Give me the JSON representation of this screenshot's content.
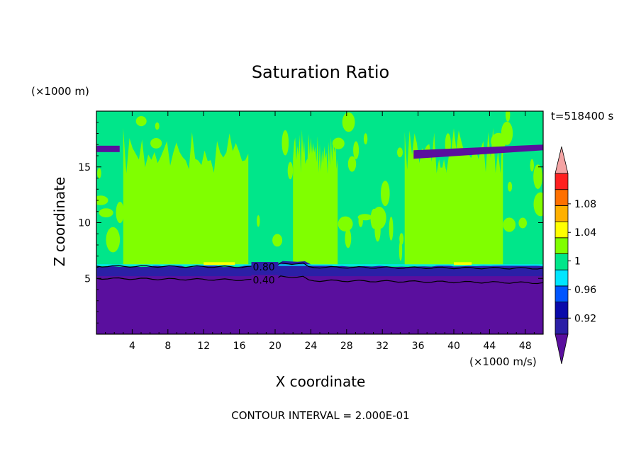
{
  "chart_data": {
    "type": "heatmap",
    "title": "Saturation Ratio",
    "xlabel": "X coordinate",
    "ylabel": "Z coordinate",
    "x_unit": "(×1000 m/s)",
    "y_unit": "(×1000 m)",
    "time_label": "t=518400 s",
    "footer": "CONTOUR INTERVAL = 2.000E-01",
    "xlim": [
      0,
      50
    ],
    "ylim": [
      0,
      20
    ],
    "x_ticks": [
      4,
      8,
      12,
      16,
      20,
      24,
      28,
      32,
      36,
      40,
      44,
      48
    ],
    "y_ticks": [
      5,
      10,
      15
    ],
    "colorbar": {
      "levels": [
        0.92,
        0.94,
        0.96,
        0.98,
        1.0,
        1.02,
        1.04,
        1.06,
        1.08,
        1.1
      ],
      "tick_labels": [
        "1.08",
        "1.04",
        "1",
        "0.96",
        "0.92"
      ],
      "colors": [
        "#5a0f9e",
        "#2b1fa6",
        "#0a0aaa",
        "#0055ff",
        "#00e5ff",
        "#00e68a",
        "#80ff00",
        "#ffff00",
        "#ffb000",
        "#ff7000",
        "#ff2020",
        "#f4a3a3"
      ]
    },
    "contour_labels": [
      "0.80",
      "0.40"
    ],
    "regions": {
      "low_layer_top": 6.2,
      "low_value_max": 0.9,
      "upper_moist_layer_z": 16.3,
      "upper_moist_layer_x": [
        35.5,
        50
      ],
      "supersaturated_columns_x": [
        [
          3,
          17
        ],
        [
          22,
          27
        ],
        [
          34.5,
          45.5
        ]
      ],
      "supersaturated_top_z": 18.5,
      "near_saturation_value": 1.0
    },
    "contours": [
      {
        "label": "0.80",
        "z": [
          6.1,
          5.9
        ]
      },
      {
        "label": "0.40",
        "z": [
          5.0,
          4.6
        ]
      }
    ]
  }
}
